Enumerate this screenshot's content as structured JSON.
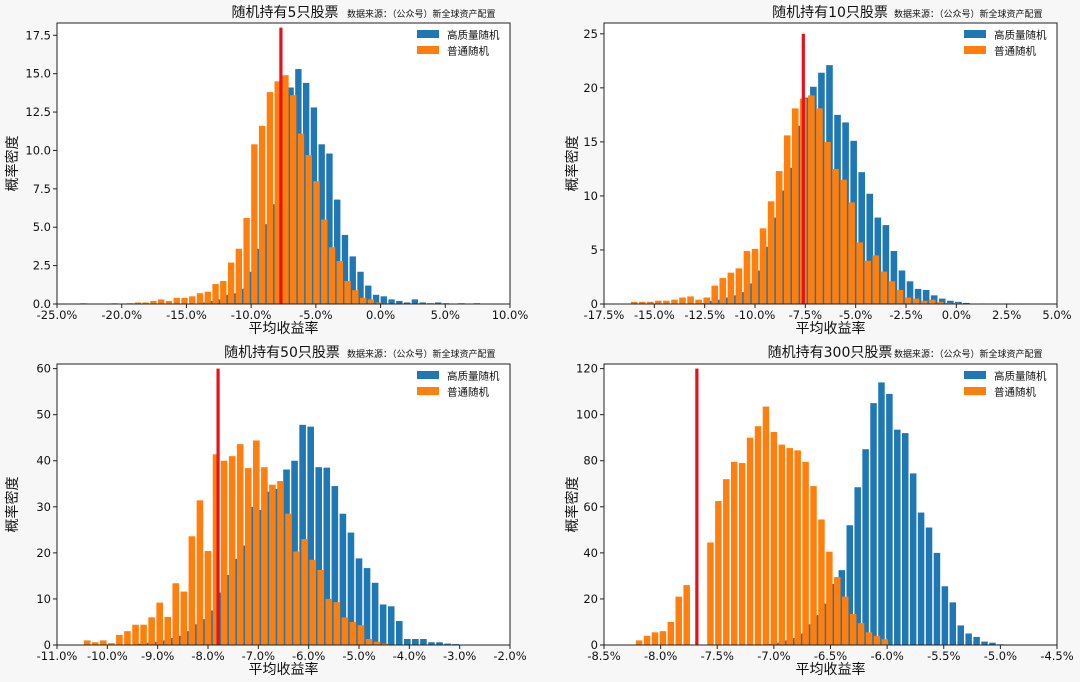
{
  "source_note": "数据来源：（公众号）新全球资产配置",
  "xlabel": "平均收益率",
  "ylabel": "概率密度",
  "legend": [
    "高质量随机",
    "普通随机"
  ],
  "colors": {
    "quality": "#1f77b4",
    "normal": "#ff7f0e",
    "marker": "#e8111a"
  },
  "chart_data": [
    {
      "type": "bar",
      "title": "随机持有5只股票",
      "xlabel": "平均收益率",
      "ylabel": "概率密度",
      "xlim": [
        -25,
        10
      ],
      "ylim": [
        0,
        18.3
      ],
      "xticks": [
        "-25.0%",
        "-20.0%",
        "-15.0%",
        "-10.0%",
        "-5.0%",
        "0.0%",
        "5.0%",
        "10.0%"
      ],
      "yticks": [
        "0.0",
        "2.5",
        "5.0",
        "7.5",
        "10.0",
        "12.5",
        "15.0",
        "17.5"
      ],
      "marker_line": {
        "x": -7.7,
        "height": 18.0
      },
      "legend_loc": "upper right",
      "series": [
        {
          "name": "高质量随机",
          "x": [
            -13.55,
            -12.95,
            -12.35,
            -11.75,
            -11.15,
            -10.55,
            -9.95,
            -9.35,
            -8.75,
            -8.15,
            -7.55,
            -6.95,
            -6.35,
            -5.75,
            -5.15,
            -4.55,
            -3.95,
            -3.35,
            -2.75,
            -2.15,
            -1.55,
            -0.95,
            -0.35,
            0.25,
            0.85,
            1.45,
            2.05,
            2.65,
            3.25,
            3.85,
            4.45,
            5.05,
            5.65,
            6.25,
            6.85,
            7.45
          ],
          "values": [
            0.1,
            0.2,
            0.3,
            0.6,
            0.7,
            1.0,
            2.1,
            3.6,
            5.2,
            6.5,
            12.7,
            14.1,
            15.3,
            14.4,
            12.8,
            10.4,
            9.8,
            6.8,
            4.5,
            3.1,
            2.1,
            1.2,
            0.6,
            0.5,
            0.3,
            0.2,
            0.1,
            0.3,
            0.1,
            0.05,
            0.1,
            0.05,
            0.0,
            0.05,
            0.0,
            0.05
          ]
        },
        {
          "name": "普通随机",
          "x": [
            -22.95,
            -20.55,
            -19.35,
            -18.75,
            -18.15,
            -17.55,
            -16.95,
            -16.35,
            -15.75,
            -15.15,
            -14.55,
            -13.95,
            -13.35,
            -12.75,
            -12.15,
            -11.55,
            -10.95,
            -10.35,
            -9.75,
            -9.15,
            -8.55,
            -7.95,
            -7.35,
            -6.75,
            -6.15,
            -5.55,
            -4.95,
            -4.35,
            -3.75,
            -3.15,
            -2.55,
            -1.95,
            -1.35,
            -0.75,
            -0.15,
            0.45
          ],
          "values": [
            0.05,
            0.05,
            0.05,
            0.1,
            0.1,
            0.2,
            0.3,
            0.2,
            0.4,
            0.4,
            0.5,
            0.7,
            0.8,
            1.3,
            1.5,
            2.7,
            3.6,
            5.6,
            10.4,
            11.6,
            13.8,
            14.5,
            14.9,
            13.6,
            11.1,
            9.7,
            8.0,
            5.5,
            3.7,
            2.8,
            1.5,
            0.9,
            0.4,
            0.3,
            0.1,
            0.05
          ]
        }
      ]
    },
    {
      "type": "bar",
      "title": "随机持有10只股票",
      "xlabel": "平均收益率",
      "ylabel": "概率密度",
      "xlim": [
        -17.5,
        5
      ],
      "ylim": [
        0,
        26
      ],
      "xticks": [
        "-17.5%",
        "-15.0%",
        "-12.5%",
        "-10.0%",
        "-7.5%",
        "-5.0%",
        "-2.5%",
        "0.0%",
        "2.5%",
        "5.0%"
      ],
      "yticks": [
        "0",
        "5",
        "10",
        "15",
        "20",
        "25"
      ],
      "marker_line": {
        "x": -7.6,
        "height": 25.0
      },
      "legend_loc": "upper right",
      "series": [
        {
          "name": "高质量随机",
          "x": [
            -12.7,
            -12.3,
            -11.9,
            -11.5,
            -11.1,
            -10.7,
            -10.3,
            -9.9,
            -9.5,
            -9.1,
            -8.7,
            -8.3,
            -7.9,
            -7.5,
            -7.1,
            -6.7,
            -6.3,
            -5.9,
            -5.5,
            -5.1,
            -4.7,
            -4.3,
            -3.9,
            -3.5,
            -3.1,
            -2.7,
            -2.3,
            -1.9,
            -1.5,
            -1.1,
            -0.7,
            -0.3,
            0.1,
            0.5,
            0.9,
            1.3,
            2.5
          ],
          "values": [
            0.1,
            0.3,
            0.4,
            0.6,
            0.8,
            1.1,
            1.9,
            3.1,
            5.3,
            8.0,
            10.5,
            12.6,
            16.5,
            19.1,
            20.1,
            21.4,
            22.1,
            17.5,
            16.8,
            15.1,
            12.2,
            10.2,
            8.0,
            7.3,
            4.9,
            3.1,
            2.1,
            1.4,
            1.3,
            0.8,
            0.5,
            0.3,
            0.2,
            0.1,
            0.0,
            0.05,
            0.05
          ]
        },
        {
          "name": "普通随机",
          "x": [
            -16.0,
            -15.6,
            -15.2,
            -14.8,
            -14.4,
            -14.0,
            -13.6,
            -13.2,
            -12.8,
            -12.4,
            -12.0,
            -11.6,
            -11.2,
            -10.8,
            -10.4,
            -10.0,
            -9.6,
            -9.2,
            -8.8,
            -8.4,
            -8.0,
            -7.6,
            -7.2,
            -6.8,
            -6.4,
            -6.0,
            -5.6,
            -5.2,
            -4.8,
            -4.4,
            -4.0,
            -3.6,
            -3.2,
            -2.8,
            -2.4,
            -2.0,
            -1.6,
            -1.2,
            -0.8,
            -0.4,
            0.0,
            0.4
          ],
          "values": [
            0.2,
            0.2,
            0.2,
            0.3,
            0.3,
            0.4,
            0.6,
            0.7,
            0.4,
            0.6,
            1.7,
            2.4,
            2.9,
            3.3,
            4.9,
            5.1,
            7.0,
            9.5,
            12.3,
            15.6,
            18.1,
            19.0,
            19.3,
            18.1,
            15.0,
            12.5,
            11.5,
            9.4,
            5.7,
            4.0,
            4.5,
            3.0,
            2.1,
            1.3,
            0.6,
            0.5,
            0.3,
            0.4,
            0.2,
            0.1,
            0.1,
            0.05
          ]
        }
      ]
    },
    {
      "type": "bar",
      "title": "随机持有50只股票",
      "xlabel": "平均收益率",
      "ylabel": "概率密度",
      "xlim": [
        -11,
        -2
      ],
      "ylim": [
        0,
        61
      ],
      "xticks": [
        "-11.0%",
        "-10.0%",
        "-9.0%",
        "-8.0%",
        "-7.0%",
        "-6.0%",
        "-5.0%",
        "-4.0%",
        "-3.0%",
        "-2.0%"
      ],
      "yticks": [
        "0",
        "10",
        "20",
        "30",
        "40",
        "50",
        "60"
      ],
      "marker_line": {
        "x": -7.8,
        "height": 60.0
      },
      "legend_loc": "upper right",
      "series": [
        {
          "name": "高质量随机",
          "x": [
            -9.32,
            -9.16,
            -9.0,
            -8.84,
            -8.68,
            -8.52,
            -8.36,
            -8.2,
            -8.04,
            -7.88,
            -7.72,
            -7.56,
            -7.4,
            -7.24,
            -7.08,
            -6.92,
            -6.76,
            -6.6,
            -6.44,
            -6.28,
            -6.12,
            -5.96,
            -5.8,
            -5.64,
            -5.48,
            -5.32,
            -5.16,
            -5.0,
            -4.84,
            -4.68,
            -4.52,
            -4.36,
            -4.2,
            -4.04,
            -3.88,
            -3.72,
            -3.56,
            -3.4,
            -3.24,
            -3.08
          ],
          "values": [
            0.3,
            0.5,
            0.7,
            1.0,
            1.5,
            2.0,
            3.0,
            4.5,
            5.6,
            7.5,
            11.4,
            15.2,
            18.7,
            21.6,
            30.0,
            29.3,
            33.3,
            33.9,
            38.1,
            40.0,
            47.8,
            47.4,
            38.6,
            38.5,
            34.5,
            28.5,
            24.4,
            18.8,
            16.7,
            13.5,
            8.8,
            8.4,
            5.2,
            1.3,
            1.3,
            1.3,
            0.6,
            0.6,
            0.3,
            0.2
          ]
        },
        {
          "name": "普通随机",
          "x": [
            -10.4,
            -10.24,
            -10.08,
            -9.92,
            -9.76,
            -9.6,
            -9.44,
            -9.28,
            -9.12,
            -8.96,
            -8.8,
            -8.64,
            -8.48,
            -8.32,
            -8.16,
            -8.0,
            -7.84,
            -7.68,
            -7.52,
            -7.36,
            -7.2,
            -7.04,
            -6.88,
            -6.72,
            -6.56,
            -6.4,
            -6.24,
            -6.08,
            -5.92,
            -5.76,
            -5.6,
            -5.44,
            -5.28,
            -5.12,
            -4.96,
            -4.8,
            -4.64,
            -4.48
          ],
          "values": [
            1.0,
            0.6,
            1.0,
            0.4,
            2.2,
            3.0,
            4.4,
            4.4,
            6.0,
            9.2,
            6.1,
            13.4,
            11.6,
            23.6,
            31.4,
            20.4,
            41.4,
            40.0,
            41.0,
            43.6,
            38.4,
            44.4,
            38.6,
            34.8,
            35.6,
            28.5,
            20.3,
            23.0,
            18.5,
            16.3,
            10.0,
            9.3,
            6.0,
            5.0,
            4.3,
            1.3,
            0.7,
            0.3
          ]
        }
      ]
    },
    {
      "type": "bar",
      "title": "随机持有300只股票",
      "xlabel": "平均收益率",
      "ylabel": "概率密度",
      "xlim": [
        -8.5,
        -4.5
      ],
      "ylim": [
        0,
        122
      ],
      "xticks": [
        "-8.5%",
        "-8.0%",
        "-7.5%",
        "-7.0%",
        "-6.5%",
        "-6.0%",
        "-5.5%",
        "-5.0%",
        "-4.5%"
      ],
      "yticks": [
        "0",
        "20",
        "40",
        "60",
        "80",
        "100",
        "120"
      ],
      "marker_line": {
        "x": -7.68,
        "height": 120.0
      },
      "legend_loc": "upper right",
      "series": [
        {
          "name": "高质量随机",
          "x": [
            -7.03,
            -6.96,
            -6.89,
            -6.82,
            -6.75,
            -6.68,
            -6.61,
            -6.54,
            -6.47,
            -6.4,
            -6.33,
            -6.26,
            -6.19,
            -6.12,
            -6.05,
            -5.98,
            -5.91,
            -5.84,
            -5.77,
            -5.7,
            -5.63,
            -5.56,
            -5.49,
            -5.42,
            -5.35,
            -5.28,
            -5.21,
            -5.14,
            -5.07,
            -5.0,
            -4.93
          ],
          "values": [
            0.5,
            1.0,
            2.0,
            3.0,
            5.0,
            9.0,
            13.0,
            18.0,
            26.5,
            32.5,
            52.0,
            68.5,
            85.0,
            105.0,
            114.0,
            109.0,
            93.5,
            92.0,
            74.5,
            57.5,
            51.0,
            40.0,
            25.5,
            18.5,
            8.5,
            5.0,
            3.5,
            1.5,
            1.0,
            0.3,
            0.2
          ]
        },
        {
          "name": "普通随机",
          "x": [
            -8.19,
            -8.12,
            -8.05,
            -7.98,
            -7.91,
            -7.84,
            -7.77,
            -7.7,
            -7.63,
            -7.56,
            -7.49,
            -7.42,
            -7.35,
            -7.28,
            -7.21,
            -7.14,
            -7.07,
            -7.0,
            -6.93,
            -6.86,
            -6.79,
            -6.72,
            -6.65,
            -6.58,
            -6.51,
            -6.44,
            -6.37,
            -6.3,
            -6.23,
            -6.16,
            -6.09,
            -6.02
          ],
          "values": [
            2.0,
            4.0,
            5.5,
            6.0,
            10.0,
            21.0,
            26.0,
            0.0,
            0.0,
            44.5,
            62.5,
            72.0,
            79.5,
            79.0,
            90.0,
            95.0,
            103.5,
            92.5,
            87.0,
            85.5,
            84.5,
            79.5,
            69.0,
            54.5,
            40.5,
            29.5,
            21.0,
            13.5,
            9.5,
            5.5,
            4.0,
            2.5
          ]
        }
      ]
    }
  ]
}
